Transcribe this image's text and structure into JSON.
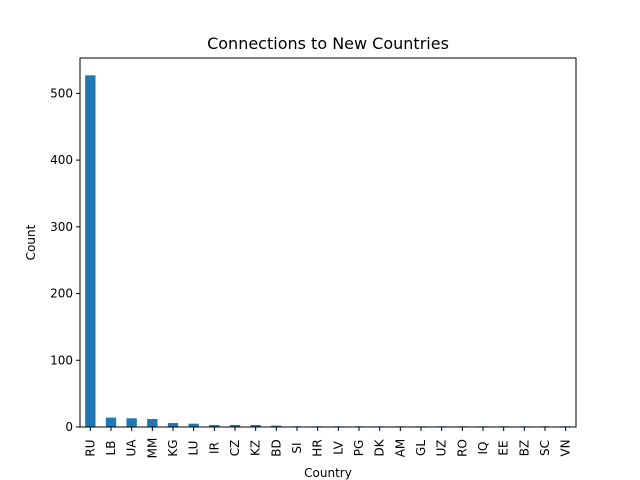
{
  "chart_data": {
    "type": "bar",
    "title": "Connections to New Countries",
    "xlabel": "Country",
    "ylabel": "Count",
    "categories": [
      "RU",
      "LB",
      "UA",
      "MM",
      "KG",
      "LU",
      "IR",
      "CZ",
      "KZ",
      "BD",
      "SI",
      "HR",
      "LV",
      "PG",
      "DK",
      "AM",
      "GL",
      "UZ",
      "RO",
      "IQ",
      "EE",
      "BZ",
      "SC",
      "VN"
    ],
    "values": [
      527,
      14,
      13,
      12,
      6,
      5,
      3,
      3,
      3,
      2,
      1,
      1,
      1,
      1,
      1,
      1,
      1,
      1,
      1,
      1,
      1,
      1,
      1,
      1
    ],
    "ylim": [
      0,
      553
    ],
    "yticks": [
      0,
      100,
      200,
      300,
      400,
      500
    ],
    "grid": false,
    "bar_color": "#1f77b4",
    "legend": "none"
  }
}
